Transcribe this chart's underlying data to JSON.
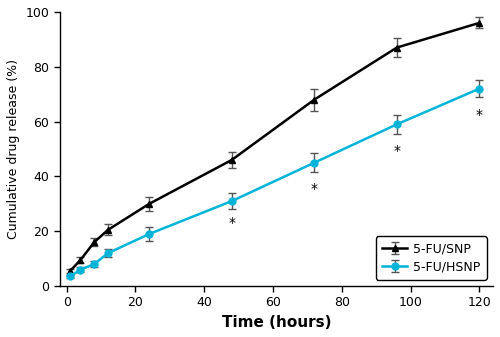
{
  "snp_x": [
    1,
    4,
    8,
    12,
    24,
    48,
    72,
    96,
    120
  ],
  "snp_y": [
    5.5,
    9.5,
    16,
    20.5,
    30,
    46,
    68,
    87,
    96
  ],
  "snp_yerr": [
    0.8,
    1.0,
    1.5,
    2.0,
    2.5,
    3.0,
    4.0,
    3.5,
    2.0
  ],
  "hsnp_x": [
    1,
    4,
    8,
    12,
    24,
    48,
    72,
    96,
    120
  ],
  "hsnp_y": [
    3.5,
    6,
    8,
    12,
    19,
    31,
    45,
    59,
    72
  ],
  "hsnp_yerr": [
    0.5,
    0.8,
    1.0,
    1.5,
    2.5,
    3.0,
    3.5,
    3.5,
    3.0
  ],
  "snp_color": "#000000",
  "hsnp_color": "#00b4d8",
  "xlabel": "Time (hours)",
  "ylabel": "Cumulative drug release (%)",
  "xlim": [
    -2,
    124
  ],
  "ylim": [
    0,
    100
  ],
  "xticks": [
    0,
    20,
    40,
    60,
    80,
    100,
    120
  ],
  "yticks": [
    0,
    20,
    40,
    60,
    80,
    100
  ],
  "legend_labels": [
    "5-FU/SNP",
    "5-FU/HSNP"
  ],
  "star_positions": [
    [
      48,
      25.5
    ],
    [
      72,
      38
    ],
    [
      96,
      52
    ],
    [
      120,
      65
    ]
  ],
  "legend_loc": "lower right",
  "snp_marker": "^",
  "hsnp_marker": "o",
  "linewidth": 1.8,
  "markersize": 5,
  "capsize": 3,
  "elinewidth": 1.0
}
